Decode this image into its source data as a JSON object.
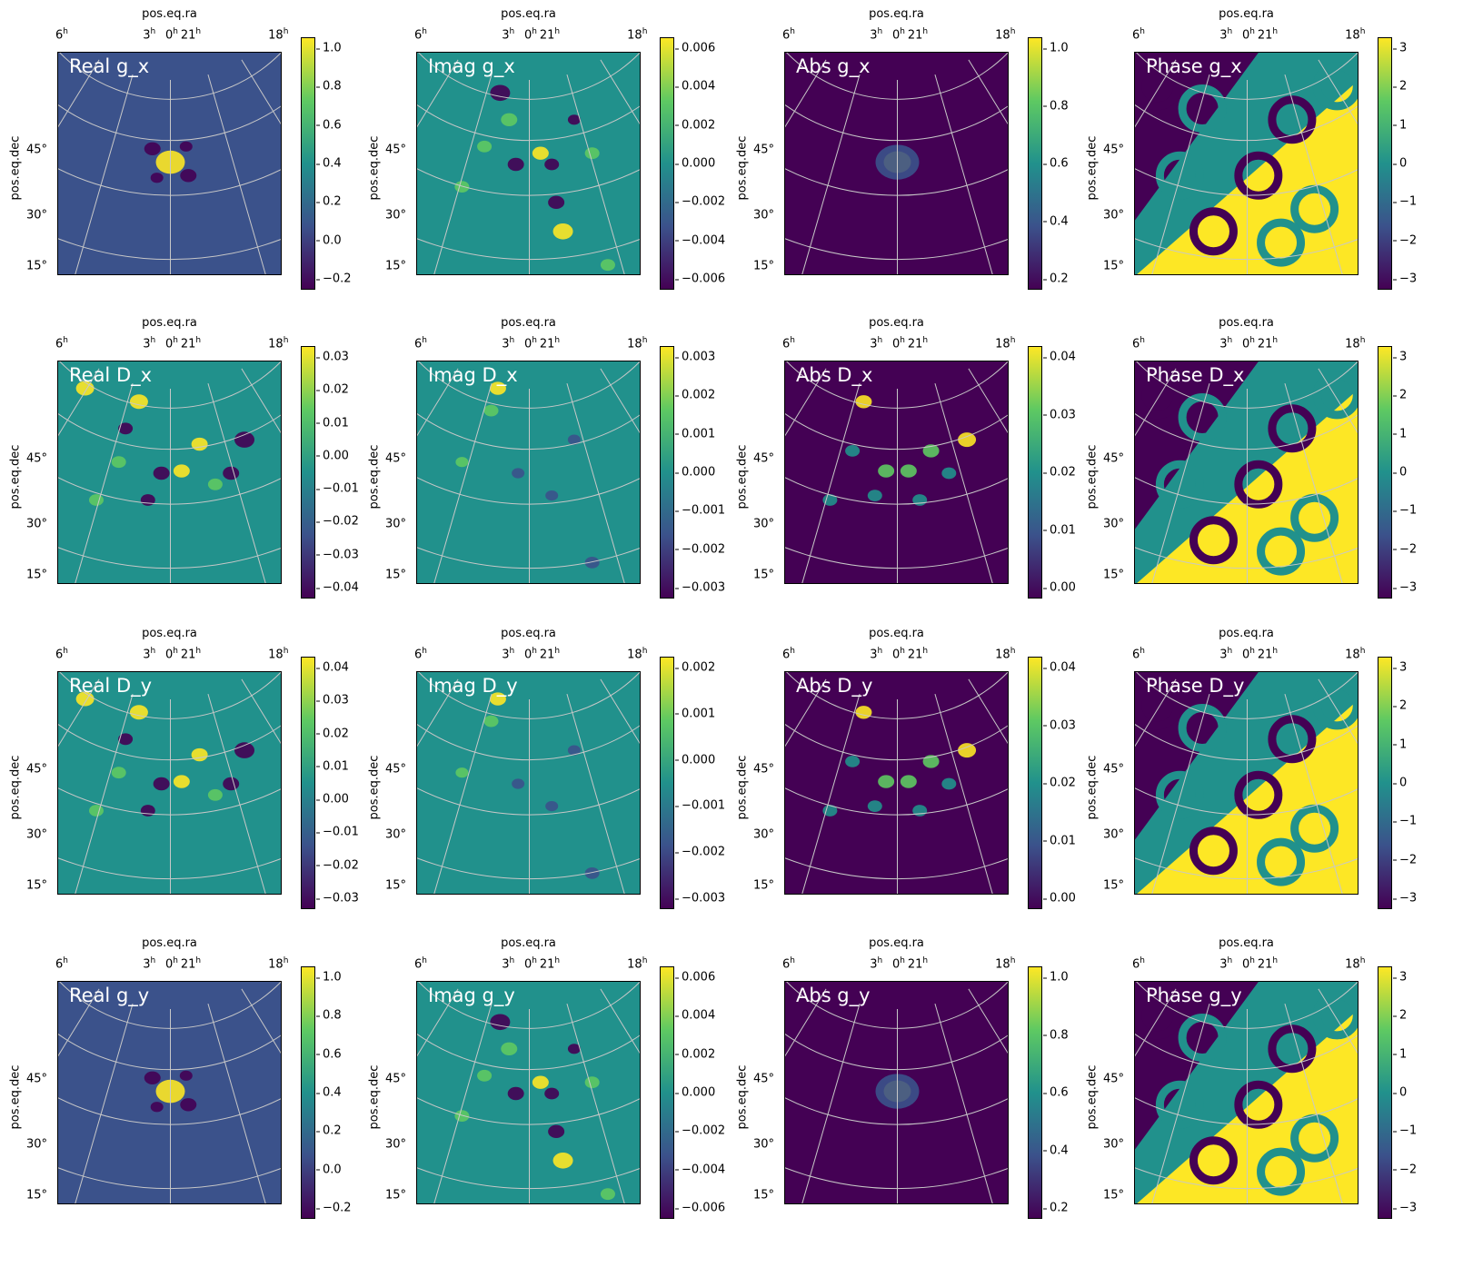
{
  "figure": {
    "x_axis_label": "pos.eq.ra",
    "y_axis_label": "pos.eq.dec",
    "ra_ticks": [
      {
        "base": "6",
        "sup": "h"
      },
      {
        "base": "3",
        "sup": "h"
      },
      {
        "base": "0",
        "sup": "h"
      },
      {
        "base": "21",
        "sup": "h"
      },
      {
        "base": "18",
        "sup": "h"
      }
    ],
    "dec_ticks": [
      "45°",
      "30°",
      "15°"
    ],
    "colormap": "viridis",
    "colors": [
      "#440154",
      "#3b528b",
      "#21918c",
      "#5ec962",
      "#fde725"
    ],
    "grid_color": "#c8c8c8"
  },
  "chart_data": [
    {
      "type": "heatmap",
      "title": "Real g_x",
      "colorbar": {
        "range": [
          -0.2,
          1.0
        ],
        "ticks": [
          "1.0",
          "0.8",
          "0.6",
          "0.4",
          "0.2",
          "0.0",
          "−0.2"
        ]
      }
    },
    {
      "type": "heatmap",
      "title": "Imag g_x",
      "colorbar": {
        "range": [
          -0.0065,
          0.0065
        ],
        "ticks": [
          "0.006",
          "0.004",
          "0.002",
          "0.000",
          "−0.002",
          "−0.004",
          "−0.006"
        ]
      }
    },
    {
      "type": "heatmap",
      "title": "Abs g_x",
      "colorbar": {
        "range": [
          0.0,
          1.0
        ],
        "ticks": [
          "1.0",
          "0.8",
          "0.6",
          "0.4",
          "0.2"
        ]
      }
    },
    {
      "type": "heatmap",
      "title": "Phase g_x",
      "colorbar": {
        "range": [
          -3.14,
          3.14
        ],
        "ticks": [
          "3",
          "2",
          "1",
          "0",
          "−1",
          "−2",
          "−3"
        ]
      }
    },
    {
      "type": "heatmap",
      "title": "Real D_x",
      "colorbar": {
        "range": [
          -0.048,
          0.038
        ],
        "ticks": [
          "0.03",
          "0.02",
          "0.01",
          "0.00",
          "−0.01",
          "−0.02",
          "−0.03",
          "−0.04"
        ]
      }
    },
    {
      "type": "heatmap",
      "title": "Imag D_x",
      "colorbar": {
        "range": [
          -0.0032,
          0.0038
        ],
        "ticks": [
          "0.003",
          "0.002",
          "0.001",
          "0.000",
          "−0.001",
          "−0.002",
          "−0.003"
        ]
      }
    },
    {
      "type": "heatmap",
      "title": "Abs D_x",
      "colorbar": {
        "range": [
          0.0,
          0.048
        ],
        "ticks": [
          "0.04",
          "0.03",
          "0.02",
          "0.01",
          "0.00"
        ]
      }
    },
    {
      "type": "heatmap",
      "title": "Phase D_x",
      "colorbar": {
        "range": [
          -3.14,
          3.14
        ],
        "ticks": [
          "3",
          "2",
          "1",
          "0",
          "−1",
          "−2",
          "−3"
        ]
      }
    },
    {
      "type": "heatmap",
      "title": "Real D_y",
      "colorbar": {
        "range": [
          -0.034,
          0.045
        ],
        "ticks": [
          "0.04",
          "0.03",
          "0.02",
          "0.01",
          "0.00",
          "−0.01",
          "−0.02",
          "−0.03"
        ]
      }
    },
    {
      "type": "heatmap",
      "title": "Imag D_y",
      "colorbar": {
        "range": [
          -0.0035,
          0.0028
        ],
        "ticks": [
          "0.002",
          "0.001",
          "0.000",
          "−0.001",
          "−0.002",
          "−0.003"
        ]
      }
    },
    {
      "type": "heatmap",
      "title": "Abs D_y",
      "colorbar": {
        "range": [
          0.0,
          0.045
        ],
        "ticks": [
          "0.04",
          "0.03",
          "0.02",
          "0.01",
          "0.00"
        ]
      }
    },
    {
      "type": "heatmap",
      "title": "Phase D_y",
      "colorbar": {
        "range": [
          -3.14,
          3.14
        ],
        "ticks": [
          "3",
          "2",
          "1",
          "0",
          "−1",
          "−2",
          "−3"
        ]
      }
    },
    {
      "type": "heatmap",
      "title": "Real g_y",
      "colorbar": {
        "range": [
          -0.2,
          1.0
        ],
        "ticks": [
          "1.0",
          "0.8",
          "0.6",
          "0.4",
          "0.2",
          "0.0",
          "−0.2"
        ]
      }
    },
    {
      "type": "heatmap",
      "title": "Imag g_y",
      "colorbar": {
        "range": [
          -0.0065,
          0.0065
        ],
        "ticks": [
          "0.006",
          "0.004",
          "0.002",
          "0.000",
          "−0.002",
          "−0.004",
          "−0.006"
        ]
      }
    },
    {
      "type": "heatmap",
      "title": "Abs g_y",
      "colorbar": {
        "range": [
          0.0,
          1.0
        ],
        "ticks": [
          "1.0",
          "0.8",
          "0.6",
          "0.4",
          "0.2"
        ]
      }
    },
    {
      "type": "heatmap",
      "title": "Phase g_y",
      "colorbar": {
        "range": [
          -3.14,
          3.14
        ],
        "ticks": [
          "3",
          "2",
          "1",
          "0",
          "−1",
          "−2",
          "−3"
        ]
      }
    }
  ]
}
